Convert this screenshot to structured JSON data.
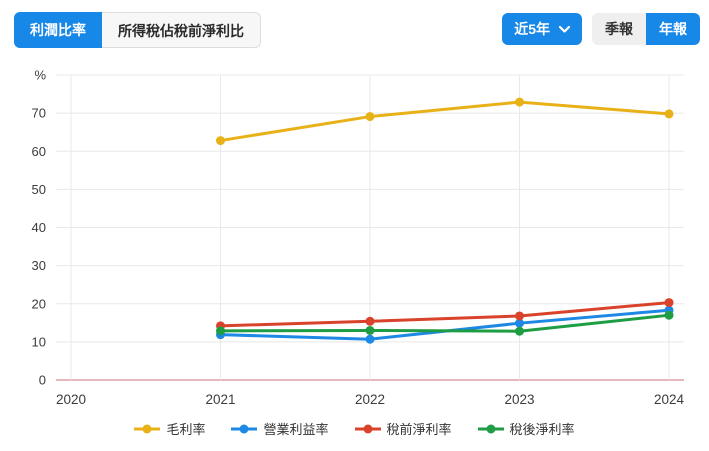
{
  "header": {
    "tabs": [
      {
        "label": "利潤比率",
        "active": true
      },
      {
        "label": "所得稅佔稅前淨利比",
        "active": false
      }
    ],
    "range_dropdown": {
      "label": "近5年"
    },
    "period_toggle": [
      {
        "label": "季報",
        "active": false
      },
      {
        "label": "年報",
        "active": true
      }
    ]
  },
  "colors": {
    "accent_blue": "#1787e8",
    "grid": "#e8e8e8",
    "zero_line": "#e6b8bd",
    "axis_text": "#3c3c3c"
  },
  "chart_data": {
    "type": "line",
    "title": "",
    "xlabel": "",
    "ylabel": "",
    "ytop_label": "%",
    "ylim": [
      0,
      80
    ],
    "ytick_step": 10,
    "yticks": [
      0,
      10,
      20,
      30,
      40,
      50,
      60,
      70
    ],
    "grid": true,
    "legend_position": "bottom",
    "categories": [
      "2020",
      "2021",
      "2022",
      "2023",
      "2024"
    ],
    "series": [
      {
        "name": "毛利率",
        "color": "#e9b118",
        "values": [
          null,
          62.8,
          69.1,
          72.9,
          69.8
        ]
      },
      {
        "name": "營業利益率",
        "color": "#1e88e5",
        "values": [
          null,
          11.9,
          10.7,
          14.9,
          18.3
        ]
      },
      {
        "name": "稅前淨利率",
        "color": "#d9432b",
        "values": [
          null,
          14.2,
          15.4,
          16.8,
          20.3
        ]
      },
      {
        "name": "稅後淨利率",
        "color": "#1f9d45",
        "values": [
          null,
          12.9,
          13.0,
          12.8,
          17.0
        ]
      }
    ]
  }
}
